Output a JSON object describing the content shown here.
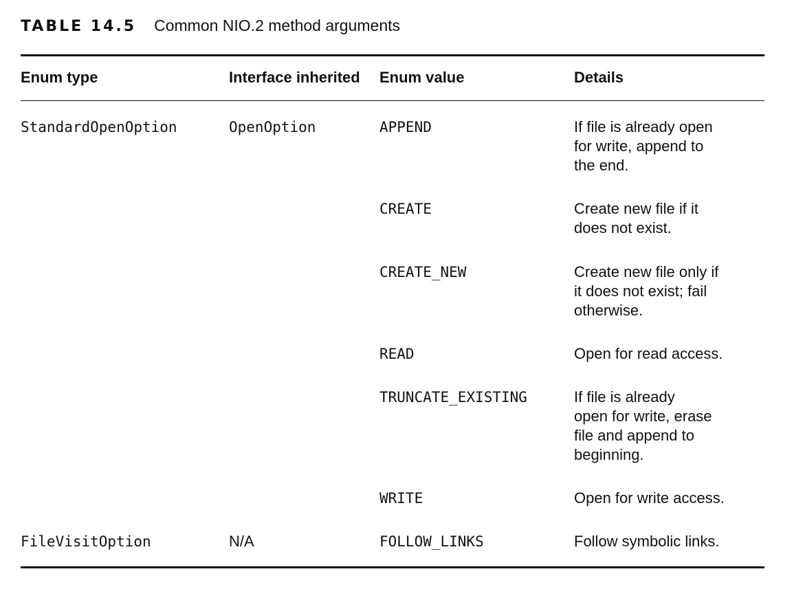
{
  "caption": {
    "label": "TABLE 14.5",
    "title": "Common NIO.2 method arguments"
  },
  "table": {
    "headers": [
      "Enum type",
      "Interface inherited",
      "Enum value",
      "Details"
    ],
    "rows": [
      {
        "enum_type": "StandardOpenOption",
        "interface": "OpenOption",
        "value": "APPEND",
        "details": [
          "If file is already open",
          "for write, append to",
          "the end."
        ]
      },
      {
        "enum_type": "",
        "interface": "",
        "value": "CREATE",
        "details": [
          "Create new file if it",
          "does not exist."
        ]
      },
      {
        "enum_type": "",
        "interface": "",
        "value": "CREATE_NEW",
        "details": [
          "Create new file only if",
          "it does not exist; fail",
          "otherwise."
        ]
      },
      {
        "enum_type": "",
        "interface": "",
        "value": "READ",
        "details": [
          "Open for read access."
        ]
      },
      {
        "enum_type": "",
        "interface": "",
        "value": "TRUNCATE_EXISTING",
        "details": [
          "If file is already",
          "open for write, erase",
          "file and append to",
          "beginning."
        ]
      },
      {
        "enum_type": "",
        "interface": "",
        "value": "WRITE",
        "details": [
          "Open for write access."
        ]
      },
      {
        "enum_type": "FileVisitOption",
        "interface": "N/A",
        "value": "FOLLOW_LINKS",
        "details": [
          "Follow symbolic links."
        ]
      }
    ]
  }
}
